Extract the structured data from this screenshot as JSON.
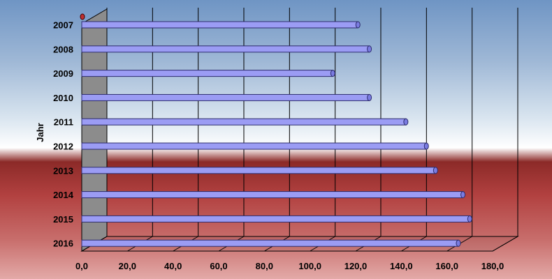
{
  "chart_data": {
    "type": "bar",
    "orientation": "horizontal",
    "categories": [
      "2007",
      "2008",
      "2009",
      "2010",
      "2011",
      "2012",
      "2013",
      "2014",
      "2015",
      "2016"
    ],
    "values": [
      121,
      126,
      110,
      126,
      142,
      151,
      155,
      167,
      170,
      165
    ],
    "ylabel": "Jahr",
    "xlim": [
      0,
      180
    ],
    "x_ticks": [
      "0,0",
      "20,0",
      "40,0",
      "60,0",
      "80,0",
      "100,0",
      "120,0",
      "140,0",
      "160,0",
      "180,0"
    ],
    "grid": true,
    "legend": "none",
    "colors": {
      "bar": "#9b9cf4",
      "bar_edge": "#2c2c6e",
      "grid": "#000000",
      "wall": "#8c8c8c"
    }
  }
}
